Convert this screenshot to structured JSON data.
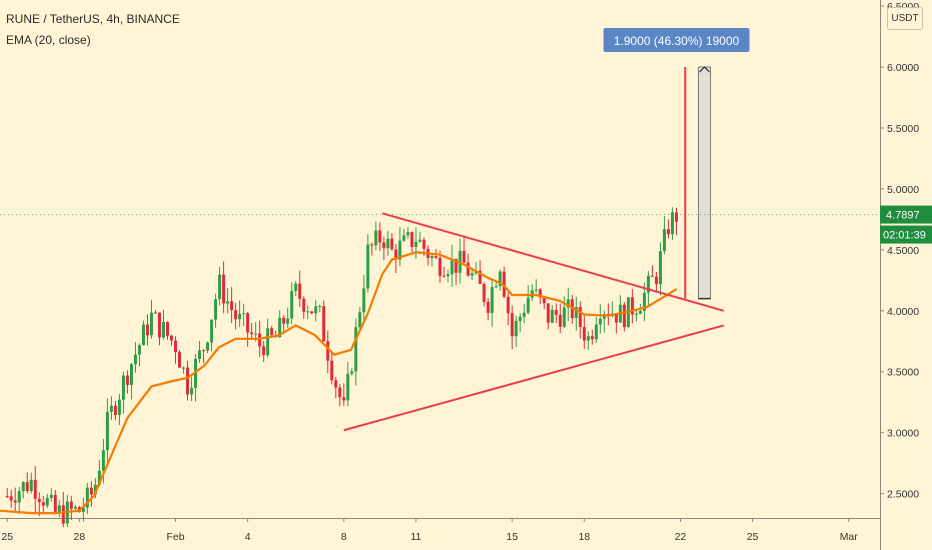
{
  "header": {
    "title": "RUNE / TetherUS, 4h, BINANCE",
    "indicator": "EMA (20, close)"
  },
  "currency_button": "USDT",
  "colors": {
    "background": "#FFF5D6",
    "bull": "#2E9E45",
    "bear": "#E02A3A",
    "ema": "#F57C00",
    "trendline": "#EE3B48",
    "badge_green": "#1E8E3E",
    "measure_blue": "#5B86C5"
  },
  "chart_data": {
    "type": "candlestick",
    "symbol": "RUNE / TetherUS",
    "timeframe": "4h",
    "exchange": "BINANCE",
    "y_axis": {
      "ticks": [
        "2.5000",
        "3.0000",
        "3.5000",
        "4.0000",
        "4.5000",
        "5.0000",
        "5.5000",
        "6.0000",
        "6.5000"
      ],
      "range": [
        2.3,
        6.55
      ]
    },
    "x_axis": {
      "ticks": [
        {
          "label": "25",
          "day": 0
        },
        {
          "label": "28",
          "day": 3
        },
        {
          "label": "Feb",
          "day": 7
        },
        {
          "label": "4",
          "day": 10
        },
        {
          "label": "8",
          "day": 14
        },
        {
          "label": "11",
          "day": 17
        },
        {
          "label": "15",
          "day": 21
        },
        {
          "label": "18",
          "day": 24
        },
        {
          "label": "22",
          "day": 28
        },
        {
          "label": "25",
          "day": 31
        },
        {
          "label": "Mar",
          "day": 35
        }
      ],
      "range_days": [
        -0.3,
        36.3
      ]
    },
    "last_price_label": "4.7897",
    "last_price": 4.7897,
    "countdown_label": "02:01:39",
    "measure_label": "1.9000 (46.30%) 19000",
    "measure": {
      "from_price": 4.1,
      "to_price": 6.0,
      "day": 29.0
    },
    "breakout_spike": {
      "day": 28.2,
      "top": 6.0
    },
    "triangle": {
      "upper": [
        {
          "day": 15.6,
          "price": 4.8
        },
        {
          "day": 29.8,
          "price": 4.0
        }
      ],
      "lower": [
        {
          "day": 14.0,
          "price": 3.02
        },
        {
          "day": 29.8,
          "price": 3.88
        }
      ]
    },
    "price_path": [
      [
        0,
        2.48
      ],
      [
        1,
        2.6
      ],
      [
        2,
        2.34
      ],
      [
        3,
        2.36
      ],
      [
        3.6,
        2.52
      ],
      [
        4.2,
        3.1
      ],
      [
        5,
        3.5
      ],
      [
        6,
        3.95
      ],
      [
        7,
        3.72
      ],
      [
        7.5,
        3.4
      ],
      [
        8.2,
        3.72
      ],
      [
        8.8,
        4.22
      ],
      [
        9.5,
        3.95
      ],
      [
        10.5,
        3.72
      ],
      [
        11.2,
        3.78
      ],
      [
        12,
        4.15
      ],
      [
        13,
        3.95
      ],
      [
        13.6,
        3.45
      ],
      [
        14.0,
        3.18
      ],
      [
        14.3,
        3.55
      ],
      [
        15,
        4.48
      ],
      [
        15.6,
        4.62
      ],
      [
        16,
        4.48
      ],
      [
        17,
        4.6
      ],
      [
        17.8,
        4.4
      ],
      [
        19,
        4.38
      ],
      [
        20,
        4.08
      ],
      [
        20.5,
        4.4
      ],
      [
        21,
        3.8
      ],
      [
        21.8,
        4.18
      ],
      [
        22.5,
        3.95
      ],
      [
        23.5,
        4.0
      ],
      [
        24.2,
        3.76
      ],
      [
        24.6,
        4.05
      ],
      [
        25.6,
        3.96
      ],
      [
        26.4,
        4.1
      ],
      [
        27.0,
        4.3
      ],
      [
        27.5,
        4.7
      ],
      [
        27.85,
        4.79
      ]
    ],
    "ema": [
      [
        -0.3,
        2.36
      ],
      [
        1,
        2.34
      ],
      [
        2,
        2.34
      ],
      [
        3,
        2.36
      ],
      [
        3.6,
        2.48
      ],
      [
        4.3,
        2.8
      ],
      [
        5,
        3.12
      ],
      [
        6,
        3.38
      ],
      [
        6.8,
        3.42
      ],
      [
        7.5,
        3.45
      ],
      [
        8.2,
        3.55
      ],
      [
        8.8,
        3.7
      ],
      [
        9.5,
        3.77
      ],
      [
        10.5,
        3.77
      ],
      [
        11.3,
        3.8
      ],
      [
        12,
        3.88
      ],
      [
        12.8,
        3.8
      ],
      [
        13.6,
        3.64
      ],
      [
        14.3,
        3.68
      ],
      [
        15,
        3.98
      ],
      [
        15.6,
        4.3
      ],
      [
        16,
        4.42
      ],
      [
        17,
        4.48
      ],
      [
        18,
        4.46
      ],
      [
        19,
        4.38
      ],
      [
        20,
        4.27
      ],
      [
        20.6,
        4.22
      ],
      [
        21,
        4.13
      ],
      [
        22,
        4.13
      ],
      [
        23,
        4.08
      ],
      [
        24,
        3.97
      ],
      [
        25,
        3.96
      ],
      [
        26,
        4.0
      ],
      [
        26.6,
        4.03
      ],
      [
        27.2,
        4.1
      ],
      [
        27.85,
        4.18
      ]
    ]
  }
}
